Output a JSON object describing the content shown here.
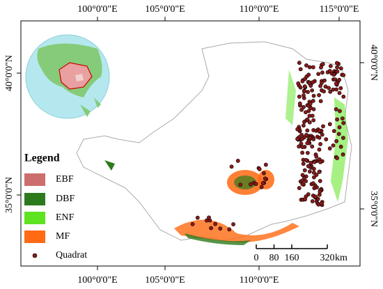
{
  "top_labels": [
    "100°0'0\"E",
    "105°0'0\"E",
    "110°0'0\"E",
    "115°0'0\"E"
  ],
  "bottom_labels": [
    "100°0'0\"E",
    "105°0'0\"E",
    "110°0'0\"E"
  ],
  "left_labels": [
    "40°0'0\"N",
    "35°0'0\"N"
  ],
  "right_labels": [
    "40°0'0\"N",
    "35°0'0\"N"
  ],
  "legend": {
    "title": "Legend",
    "items": [
      {
        "label": "EBF",
        "color": "#cd6e6e"
      },
      {
        "label": "DBF",
        "color": "#2d7a1c"
      },
      {
        "label": "ENF",
        "color": "#5de31f"
      },
      {
        "label": "MF",
        "color": "#ff6a12"
      }
    ],
    "point_label": "Quadrat",
    "point_color": "#8b1a1a"
  },
  "scale_bar": {
    "labels": [
      0,
      80,
      160,
      320
    ],
    "unit": "km"
  }
}
